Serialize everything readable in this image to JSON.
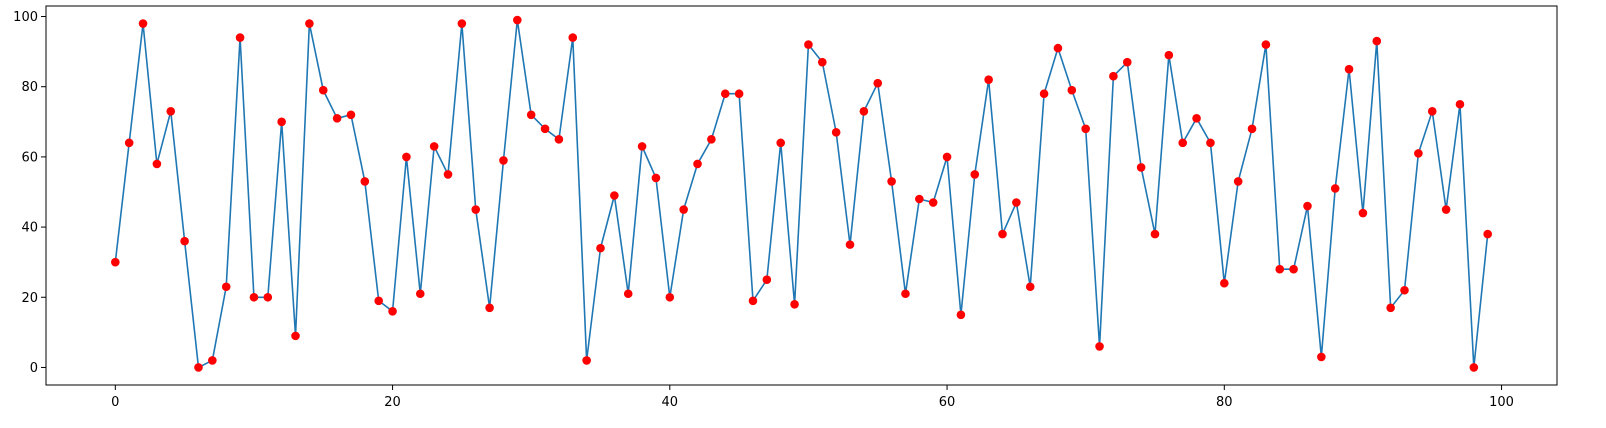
{
  "chart_data": {
    "type": "line",
    "title": "",
    "xlabel": "",
    "ylabel": "",
    "xlim": [
      -5,
      104
    ],
    "ylim": [
      -5,
      103
    ],
    "xticks": [
      0,
      20,
      40,
      60,
      80,
      100
    ],
    "yticks": [
      0,
      20,
      40,
      60,
      80,
      100
    ],
    "x_tick_labels": [
      "0",
      "20",
      "40",
      "60",
      "80",
      "100"
    ],
    "y_tick_labels": [
      "0",
      "20",
      "40",
      "60",
      "80",
      "100"
    ],
    "grid": false,
    "line_color": "#1f77b4",
    "marker_color": "#ff0000",
    "series": [
      {
        "x": [
          0,
          1,
          2,
          3,
          4,
          5,
          6,
          7,
          8,
          9,
          10,
          11,
          12,
          13,
          14,
          15,
          16,
          17,
          18,
          19,
          20,
          21,
          22,
          23,
          24,
          25,
          26,
          27,
          28,
          29,
          30,
          31,
          32,
          33,
          34,
          35,
          36,
          37,
          38,
          39,
          40,
          41,
          42,
          43,
          44,
          45,
          46,
          47,
          48,
          49,
          50,
          51,
          52,
          53,
          54,
          55,
          56,
          57,
          58,
          59,
          60,
          61,
          62,
          63,
          64,
          65,
          66,
          67,
          68,
          69,
          70,
          71,
          72,
          73,
          74,
          75,
          76,
          77,
          78,
          79,
          80,
          81,
          82,
          83,
          84,
          85,
          86,
          87,
          88,
          89,
          90,
          91,
          92,
          93,
          94,
          95,
          96,
          97,
          98,
          99
        ],
        "values": [
          30,
          64,
          98,
          58,
          73,
          36,
          0,
          2,
          23,
          94,
          20,
          20,
          70,
          9,
          98,
          79,
          71,
          72,
          53,
          19,
          16,
          60,
          21,
          63,
          55,
          98,
          45,
          17,
          59,
          99,
          72,
          68,
          65,
          94,
          2,
          34,
          49,
          21,
          63,
          54,
          20,
          45,
          58,
          65,
          78,
          78,
          19,
          25,
          64,
          18,
          92,
          87,
          67,
          35,
          73,
          81,
          53,
          21,
          48,
          47,
          60,
          15,
          55,
          82,
          38,
          47,
          23,
          78,
          91,
          79,
          68,
          6,
          83,
          87,
          57,
          38,
          89,
          64,
          71,
          64,
          24,
          53,
          68,
          92,
          28,
          28,
          46,
          3,
          51,
          85,
          44,
          93,
          17,
          22,
          61,
          73,
          45,
          75,
          0,
          38
        ]
      }
    ]
  }
}
